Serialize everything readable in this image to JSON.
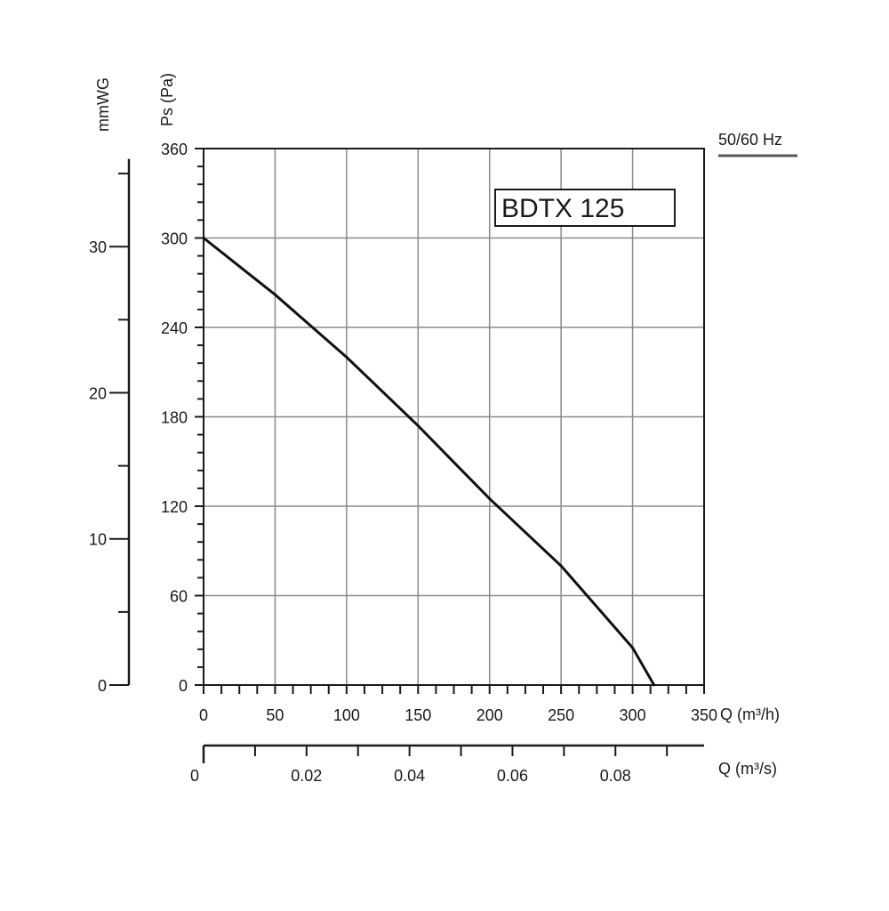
{
  "chart_data": {
    "type": "line",
    "model_label": "BDTX 125",
    "frequency_label": "50/60 Hz",
    "xlabel": "Q (m³/h)",
    "ylabel": "Ps (Pa)",
    "xlim": [
      0,
      350
    ],
    "ylim": [
      0,
      360
    ],
    "x_ticks": [
      0,
      50,
      100,
      150,
      200,
      250,
      300,
      350
    ],
    "y_ticks": [
      0,
      60,
      120,
      180,
      240,
      300,
      360
    ],
    "grid": true,
    "secondary_y": {
      "label": "mmWG",
      "ticks": [
        0,
        10,
        20,
        30
      ]
    },
    "secondary_x": {
      "label": "Q (m³/s)",
      "ticks": [
        0,
        0.02,
        0.04,
        0.06,
        0.08
      ],
      "tick_labels": [
        "0",
        "0.02",
        "0.04",
        "0.06",
        "0.08"
      ]
    },
    "series": [
      {
        "x": [
          0,
          50,
          100,
          150,
          200,
          250,
          300,
          315
        ],
        "values": [
          300,
          262,
          220,
          174,
          125,
          80,
          25,
          0
        ]
      }
    ]
  }
}
